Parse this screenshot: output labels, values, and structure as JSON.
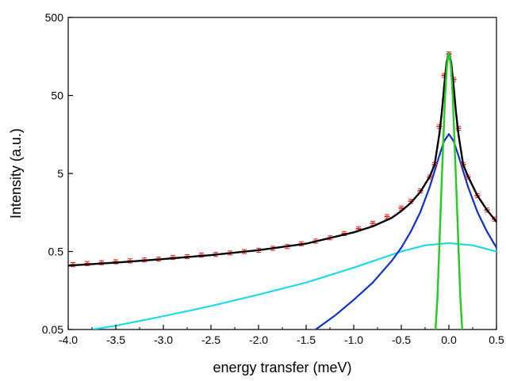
{
  "chart_data": {
    "type": "scatter",
    "title": "",
    "xlabel": "energy transfer (meV)",
    "ylabel": "Intensity (a.u.)",
    "xlim": [
      -4.0,
      0.5
    ],
    "ylim": [
      0.05,
      500
    ],
    "yscale": "log",
    "grid": false,
    "legend": "none",
    "x_ticks": [
      "-4.0",
      "-3.5",
      "-3.0",
      "-2.5",
      "-2.0",
      "-1.5",
      "-1.0",
      "-0.5",
      "0.0",
      "0.5"
    ],
    "y_ticks": [
      "0.05",
      "0.5",
      "5",
      "50",
      "500"
    ],
    "x_tick_values": [
      -4.0,
      -3.5,
      -3.0,
      -2.5,
      -2.0,
      -1.5,
      -1.0,
      -0.5,
      0.0,
      0.5
    ],
    "y_tick_values": [
      0.05,
      0.5,
      5,
      50,
      500
    ],
    "series": [
      {
        "kind": "points_with_errorbars",
        "color": "#e8201a",
        "x": [
          -3.95,
          -3.8,
          -3.65,
          -3.5,
          -3.35,
          -3.2,
          -3.05,
          -2.9,
          -2.75,
          -2.6,
          -2.45,
          -2.3,
          -2.15,
          -2.0,
          -1.85,
          -1.7,
          -1.55,
          -1.4,
          -1.25,
          -1.1,
          -0.95,
          -0.8,
          -0.65,
          -0.5,
          -0.4,
          -0.3,
          -0.2,
          -0.15,
          -0.1,
          -0.05,
          0.0,
          0.05,
          0.1,
          0.15,
          0.2,
          0.3,
          0.4,
          0.48
        ],
        "y": [
          0.34,
          0.35,
          0.36,
          0.37,
          0.38,
          0.39,
          0.4,
          0.42,
          0.43,
          0.45,
          0.46,
          0.48,
          0.5,
          0.52,
          0.55,
          0.58,
          0.63,
          0.68,
          0.75,
          0.85,
          0.98,
          1.15,
          1.4,
          1.8,
          2.2,
          3.0,
          4.5,
          6.5,
          20,
          90,
          170,
          80,
          19,
          6.5,
          4.5,
          2.6,
          1.7,
          1.3
        ]
      },
      {
        "kind": "fit_total",
        "color": "#000000",
        "x": [
          -4.0,
          -3.5,
          -3.0,
          -2.5,
          -2.0,
          -1.5,
          -1.0,
          -0.8,
          -0.6,
          -0.5,
          -0.4,
          -0.3,
          -0.2,
          -0.15,
          -0.1,
          -0.075,
          -0.05,
          -0.025,
          0.0,
          0.025,
          0.05,
          0.075,
          0.1,
          0.15,
          0.2,
          0.3,
          0.4,
          0.5
        ],
        "y": [
          0.33,
          0.36,
          0.4,
          0.45,
          0.52,
          0.63,
          0.88,
          1.05,
          1.35,
          1.65,
          2.1,
          2.9,
          4.6,
          6.5,
          16,
          30,
          65,
          130,
          175,
          130,
          65,
          30,
          16,
          6.5,
          4.6,
          2.6,
          1.7,
          1.2
        ]
      },
      {
        "kind": "narrow_component",
        "color": "#22cc22",
        "x": [
          -0.14,
          -0.12,
          -0.1,
          -0.08,
          -0.06,
          -0.04,
          -0.02,
          0.0,
          0.02,
          0.04,
          0.06,
          0.08,
          0.1,
          0.12,
          0.14
        ],
        "y": [
          0.05,
          0.13,
          0.6,
          2.8,
          12,
          50,
          125,
          175,
          125,
          50,
          12,
          2.8,
          0.6,
          0.13,
          0.05
        ]
      },
      {
        "kind": "broad_component",
        "color": "#1030cc",
        "x": [
          -1.4,
          -1.2,
          -1.0,
          -0.8,
          -0.6,
          -0.5,
          -0.4,
          -0.3,
          -0.2,
          -0.1,
          -0.05,
          0.0,
          0.05,
          0.1,
          0.2,
          0.3,
          0.4,
          0.5
        ],
        "y": [
          0.05,
          0.075,
          0.12,
          0.2,
          0.38,
          0.56,
          0.9,
          1.6,
          3.4,
          8.5,
          13,
          16,
          13,
          8.5,
          3.4,
          1.6,
          0.9,
          0.56
        ]
      },
      {
        "kind": "background_component",
        "color": "#20d8e8",
        "x": [
          -3.75,
          -3.5,
          -3.0,
          -2.5,
          -2.0,
          -1.5,
          -1.0,
          -0.5,
          -0.25,
          0.0,
          0.25,
          0.5
        ],
        "y": [
          0.05,
          0.056,
          0.074,
          0.1,
          0.14,
          0.2,
          0.31,
          0.5,
          0.6,
          0.64,
          0.6,
          0.5
        ]
      }
    ]
  }
}
